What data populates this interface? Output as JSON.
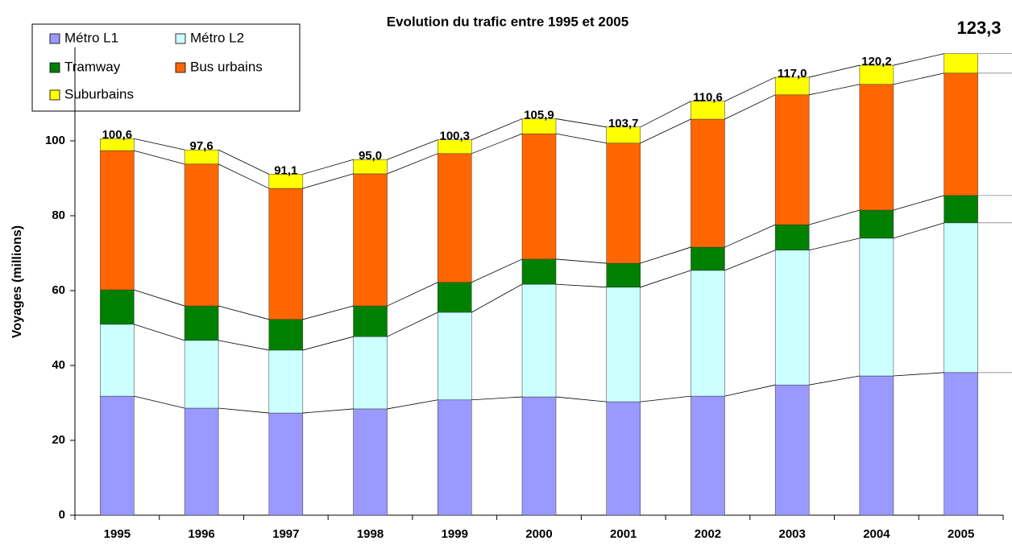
{
  "chart_data": {
    "type": "stacked_bar",
    "title": "Evolution du trafic entre 1995 et 2005",
    "y_label": "Voyages (millions)",
    "categories": [
      "1995",
      "1996",
      "1997",
      "1998",
      "1999",
      "2000",
      "2001",
      "2002",
      "2003",
      "2004",
      "2005"
    ],
    "series": [
      {
        "name": "Métro L1",
        "color": "#9999ff",
        "values": [
          31.8,
          28.6,
          27.3,
          28.4,
          30.8,
          31.6,
          30.3,
          31.8,
          34.8,
          37.2,
          38.1
        ]
      },
      {
        "name": "Métro L2",
        "color": "#ccffff",
        "values": [
          19.2,
          18.1,
          16.8,
          19.3,
          23.4,
          30.1,
          30.6,
          33.6,
          36.0,
          36.8,
          40.0
        ]
      },
      {
        "name": "Tramway",
        "color": "#008000",
        "values": [
          9.2,
          9.2,
          8.2,
          8.2,
          8.0,
          6.7,
          6.4,
          6.2,
          6.8,
          7.5,
          7.3
        ]
      },
      {
        "name": "Bus urbains",
        "color": "#ff6600",
        "values": [
          37.2,
          37.9,
          35.0,
          35.3,
          34.4,
          33.5,
          32.1,
          34.2,
          34.7,
          33.6,
          32.7
        ]
      },
      {
        "name": "Suburbains",
        "color": "#ffff00",
        "values": [
          3.2,
          3.8,
          3.8,
          3.8,
          3.7,
          4.0,
          4.3,
          4.8,
          4.7,
          5.1,
          5.2
        ]
      }
    ],
    "totals": [
      100.6,
      97.6,
      91.1,
      95.0,
      100.3,
      105.9,
      103.7,
      110.6,
      117.0,
      120.2,
      123.3
    ],
    "total_labels": [
      "100,6",
      "97,6",
      "91,1",
      "95,0",
      "100,3",
      "105,9",
      "103,7",
      "110,6",
      "117,0",
      "120,2",
      "123,3"
    ],
    "ylim": [
      0,
      125
    ],
    "yticks": [
      0,
      20,
      40,
      60,
      80,
      100
    ],
    "grid": false,
    "legend": "upper left"
  }
}
